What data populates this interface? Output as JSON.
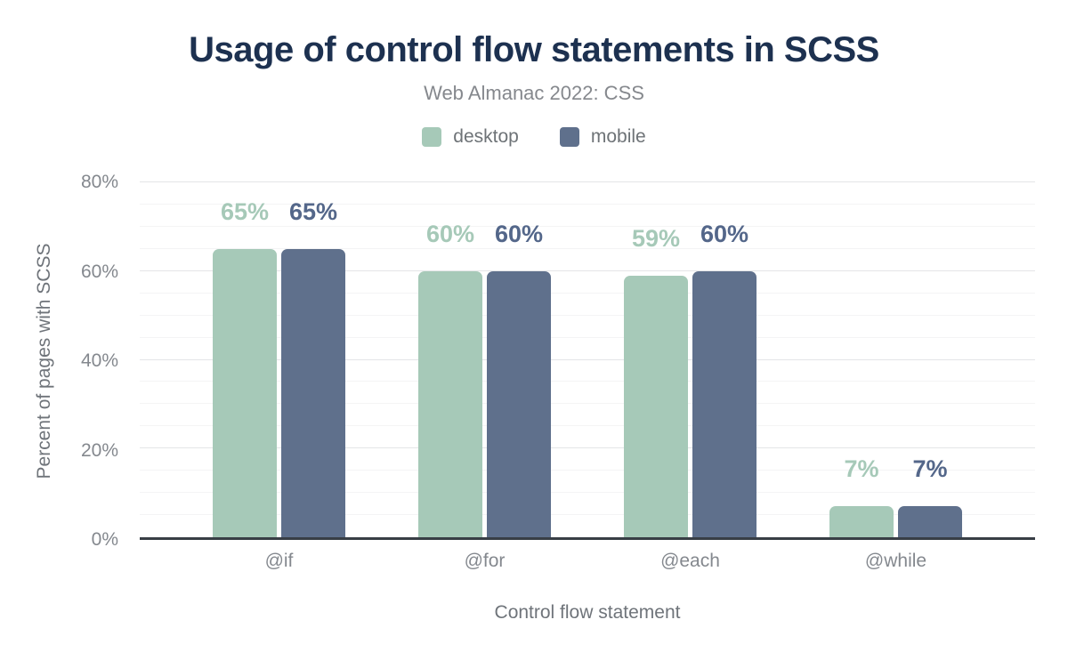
{
  "title": "Usage of control flow statements in SCSS",
  "subtitle": "Web Almanac 2022: CSS",
  "legend": {
    "position": "top-center",
    "items": [
      {
        "label": "desktop",
        "color": "#a6c9b8"
      },
      {
        "label": "mobile",
        "color": "#5f708c"
      }
    ]
  },
  "chart_data": {
    "type": "bar",
    "categories": [
      "@if",
      "@for",
      "@each",
      "@while"
    ],
    "series": [
      {
        "name": "desktop",
        "color": "#a6c9b8",
        "label_color": "#a6c9b8",
        "values": [
          65,
          60,
          59,
          7
        ],
        "labels": [
          "65%",
          "60%",
          "59%",
          "7%"
        ]
      },
      {
        "name": "mobile",
        "color": "#5f708c",
        "label_color": "#54678a",
        "values": [
          65,
          60,
          60,
          7
        ],
        "labels": [
          "65%",
          "60%",
          "60%",
          "7%"
        ]
      }
    ],
    "title": "Usage of control flow statements in SCSS",
    "subtitle": "Web Almanac 2022: CSS",
    "xlabel": "Control flow statement",
    "ylabel": "Percent of pages with SCSS",
    "ylim": [
      0,
      80
    ],
    "yticks": [
      {
        "v": 0,
        "label": "0%"
      },
      {
        "v": 20,
        "label": "20%"
      },
      {
        "v": 40,
        "label": "40%"
      },
      {
        "v": 60,
        "label": "60%"
      },
      {
        "v": 80,
        "label": "80%"
      }
    ],
    "grid": "horizontal",
    "grid_minor_step": 5,
    "grid_major_step": 20
  },
  "colors": {
    "title": "#1d3150",
    "subtitle": "#85888d",
    "legend_text": "#6e7377",
    "tick_label": "#84888e",
    "axis_title": "#6f747a",
    "grid_minor": "#f4f4f5",
    "grid_major": "#e4e5e7",
    "axis_line": "#383e45",
    "background": "#ffffff"
  }
}
